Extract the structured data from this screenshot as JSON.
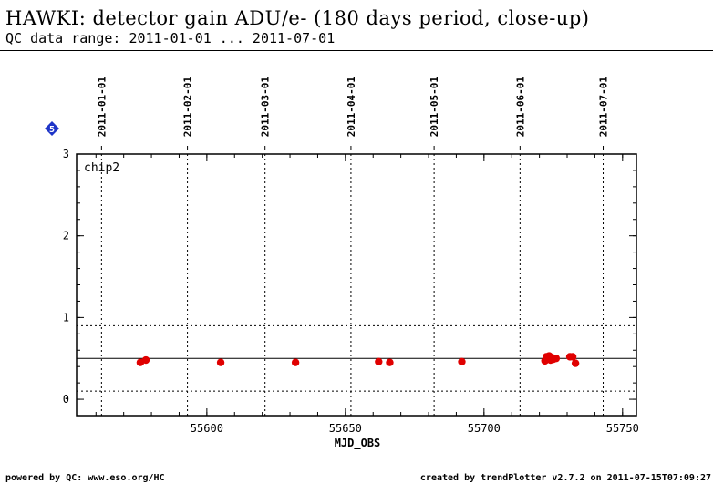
{
  "header": {
    "title": "HAWKI: detector gain ADU/e- (180 days period, close-up)",
    "subtitle": "QC data range: 2011-01-01 ... 2011-07-01"
  },
  "badge": {
    "label": "5",
    "color": "#1f35c8"
  },
  "footer": {
    "left": "powered by QC: www.eso.org/HC",
    "right": "created by trendPlotter v2.7.2 on 2011-07-15T07:09:27"
  },
  "colors": {
    "points": "#e00000",
    "axes": "#000000"
  },
  "chart_data": {
    "type": "scatter",
    "panel_label": "chip2",
    "xlabel": "MJD_OBS",
    "ylabel": "",
    "xlim": [
      55553,
      55755
    ],
    "ylim": [
      -0.2,
      3
    ],
    "x_ticks": [
      55600,
      55650,
      55700,
      55750
    ],
    "y_ticks": [
      0,
      1,
      2,
      3
    ],
    "grid": false,
    "date_markers": [
      {
        "label": "2011-01-01",
        "mjd": 55562
      },
      {
        "label": "2011-02-01",
        "mjd": 55593
      },
      {
        "label": "2011-03-01",
        "mjd": 55621
      },
      {
        "label": "2011-04-01",
        "mjd": 55652
      },
      {
        "label": "2011-05-01",
        "mjd": 55682
      },
      {
        "label": "2011-06-01",
        "mjd": 55713
      },
      {
        "label": "2011-07-01",
        "mjd": 55743
      }
    ],
    "reference_line": 0.5,
    "threshold_lines": [
      0.9,
      0.1
    ],
    "series": [
      {
        "points": [
          [
            55576,
            0.45
          ],
          [
            55578,
            0.48
          ],
          [
            55605,
            0.45
          ],
          [
            55632,
            0.45
          ],
          [
            55662,
            0.46
          ],
          [
            55666,
            0.45
          ],
          [
            55692,
            0.46
          ],
          [
            55722,
            0.47
          ],
          [
            55722.5,
            0.52
          ],
          [
            55723,
            0.5
          ],
          [
            55723.5,
            0.53
          ],
          [
            55724,
            0.48
          ],
          [
            55724.5,
            0.51
          ],
          [
            55725,
            0.49
          ],
          [
            55726,
            0.5
          ],
          [
            55731,
            0.52
          ],
          [
            55732,
            0.52
          ],
          [
            55733,
            0.44
          ]
        ]
      }
    ]
  }
}
